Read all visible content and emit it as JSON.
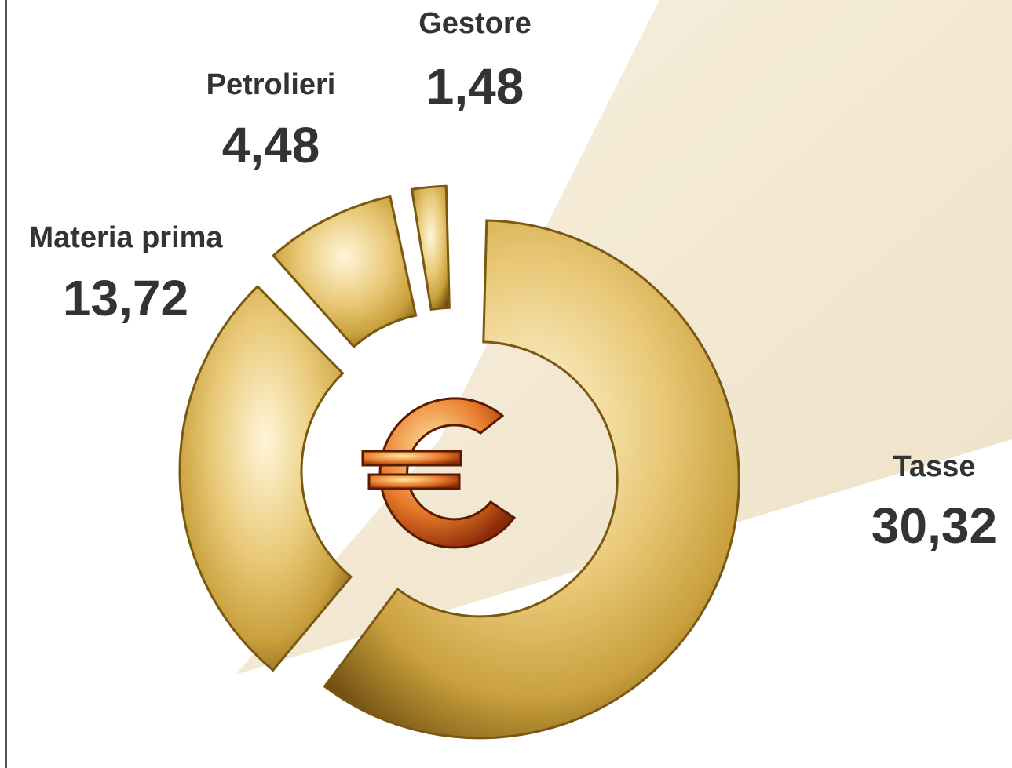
{
  "chart_data": {
    "type": "donut",
    "categories": [
      "Tasse",
      "Materia prima",
      "Petrolieri",
      "Gestore"
    ],
    "values": [
      30.32,
      13.72,
      4.48,
      1.48
    ],
    "value_labels": [
      "30,32",
      "13,72",
      "4,48",
      "1,48"
    ],
    "color": "#c9a03c"
  }
}
